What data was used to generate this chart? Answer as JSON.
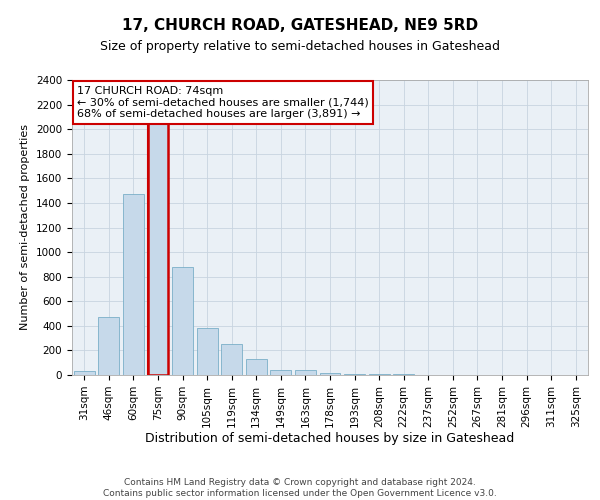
{
  "title": "17, CHURCH ROAD, GATESHEAD, NE9 5RD",
  "subtitle": "Size of property relative to semi-detached houses in Gateshead",
  "xlabel": "Distribution of semi-detached houses by size in Gateshead",
  "ylabel": "Number of semi-detached properties",
  "categories": [
    "31sqm",
    "46sqm",
    "60sqm",
    "75sqm",
    "90sqm",
    "105sqm",
    "119sqm",
    "134sqm",
    "149sqm",
    "163sqm",
    "178sqm",
    "193sqm",
    "208sqm",
    "222sqm",
    "237sqm",
    "252sqm",
    "267sqm",
    "281sqm",
    "296sqm",
    "311sqm",
    "325sqm"
  ],
  "values": [
    30,
    470,
    1470,
    2050,
    880,
    380,
    255,
    130,
    40,
    40,
    20,
    10,
    10,
    5,
    3,
    2,
    2,
    1,
    1,
    1,
    0
  ],
  "bar_color": "#c6d9ea",
  "bar_edge_color": "#7aafc8",
  "highlight_bar_index": 3,
  "vline_color": "#cc0000",
  "annotation_text": "17 CHURCH ROAD: 74sqm\n← 30% of semi-detached houses are smaller (1,744)\n68% of semi-detached houses are larger (3,891) →",
  "annotation_box_facecolor": "white",
  "annotation_box_edgecolor": "#cc0000",
  "ylim": [
    0,
    2400
  ],
  "yticks": [
    0,
    200,
    400,
    600,
    800,
    1000,
    1200,
    1400,
    1600,
    1800,
    2000,
    2200,
    2400
  ],
  "grid_color": "#c8d4e0",
  "background_color": "#eaf0f6",
  "footer_text": "Contains HM Land Registry data © Crown copyright and database right 2024.\nContains public sector information licensed under the Open Government Licence v3.0.",
  "title_fontsize": 11,
  "subtitle_fontsize": 9,
  "xlabel_fontsize": 9,
  "ylabel_fontsize": 8,
  "tick_fontsize": 7.5,
  "annotation_fontsize": 8,
  "footer_fontsize": 6.5
}
